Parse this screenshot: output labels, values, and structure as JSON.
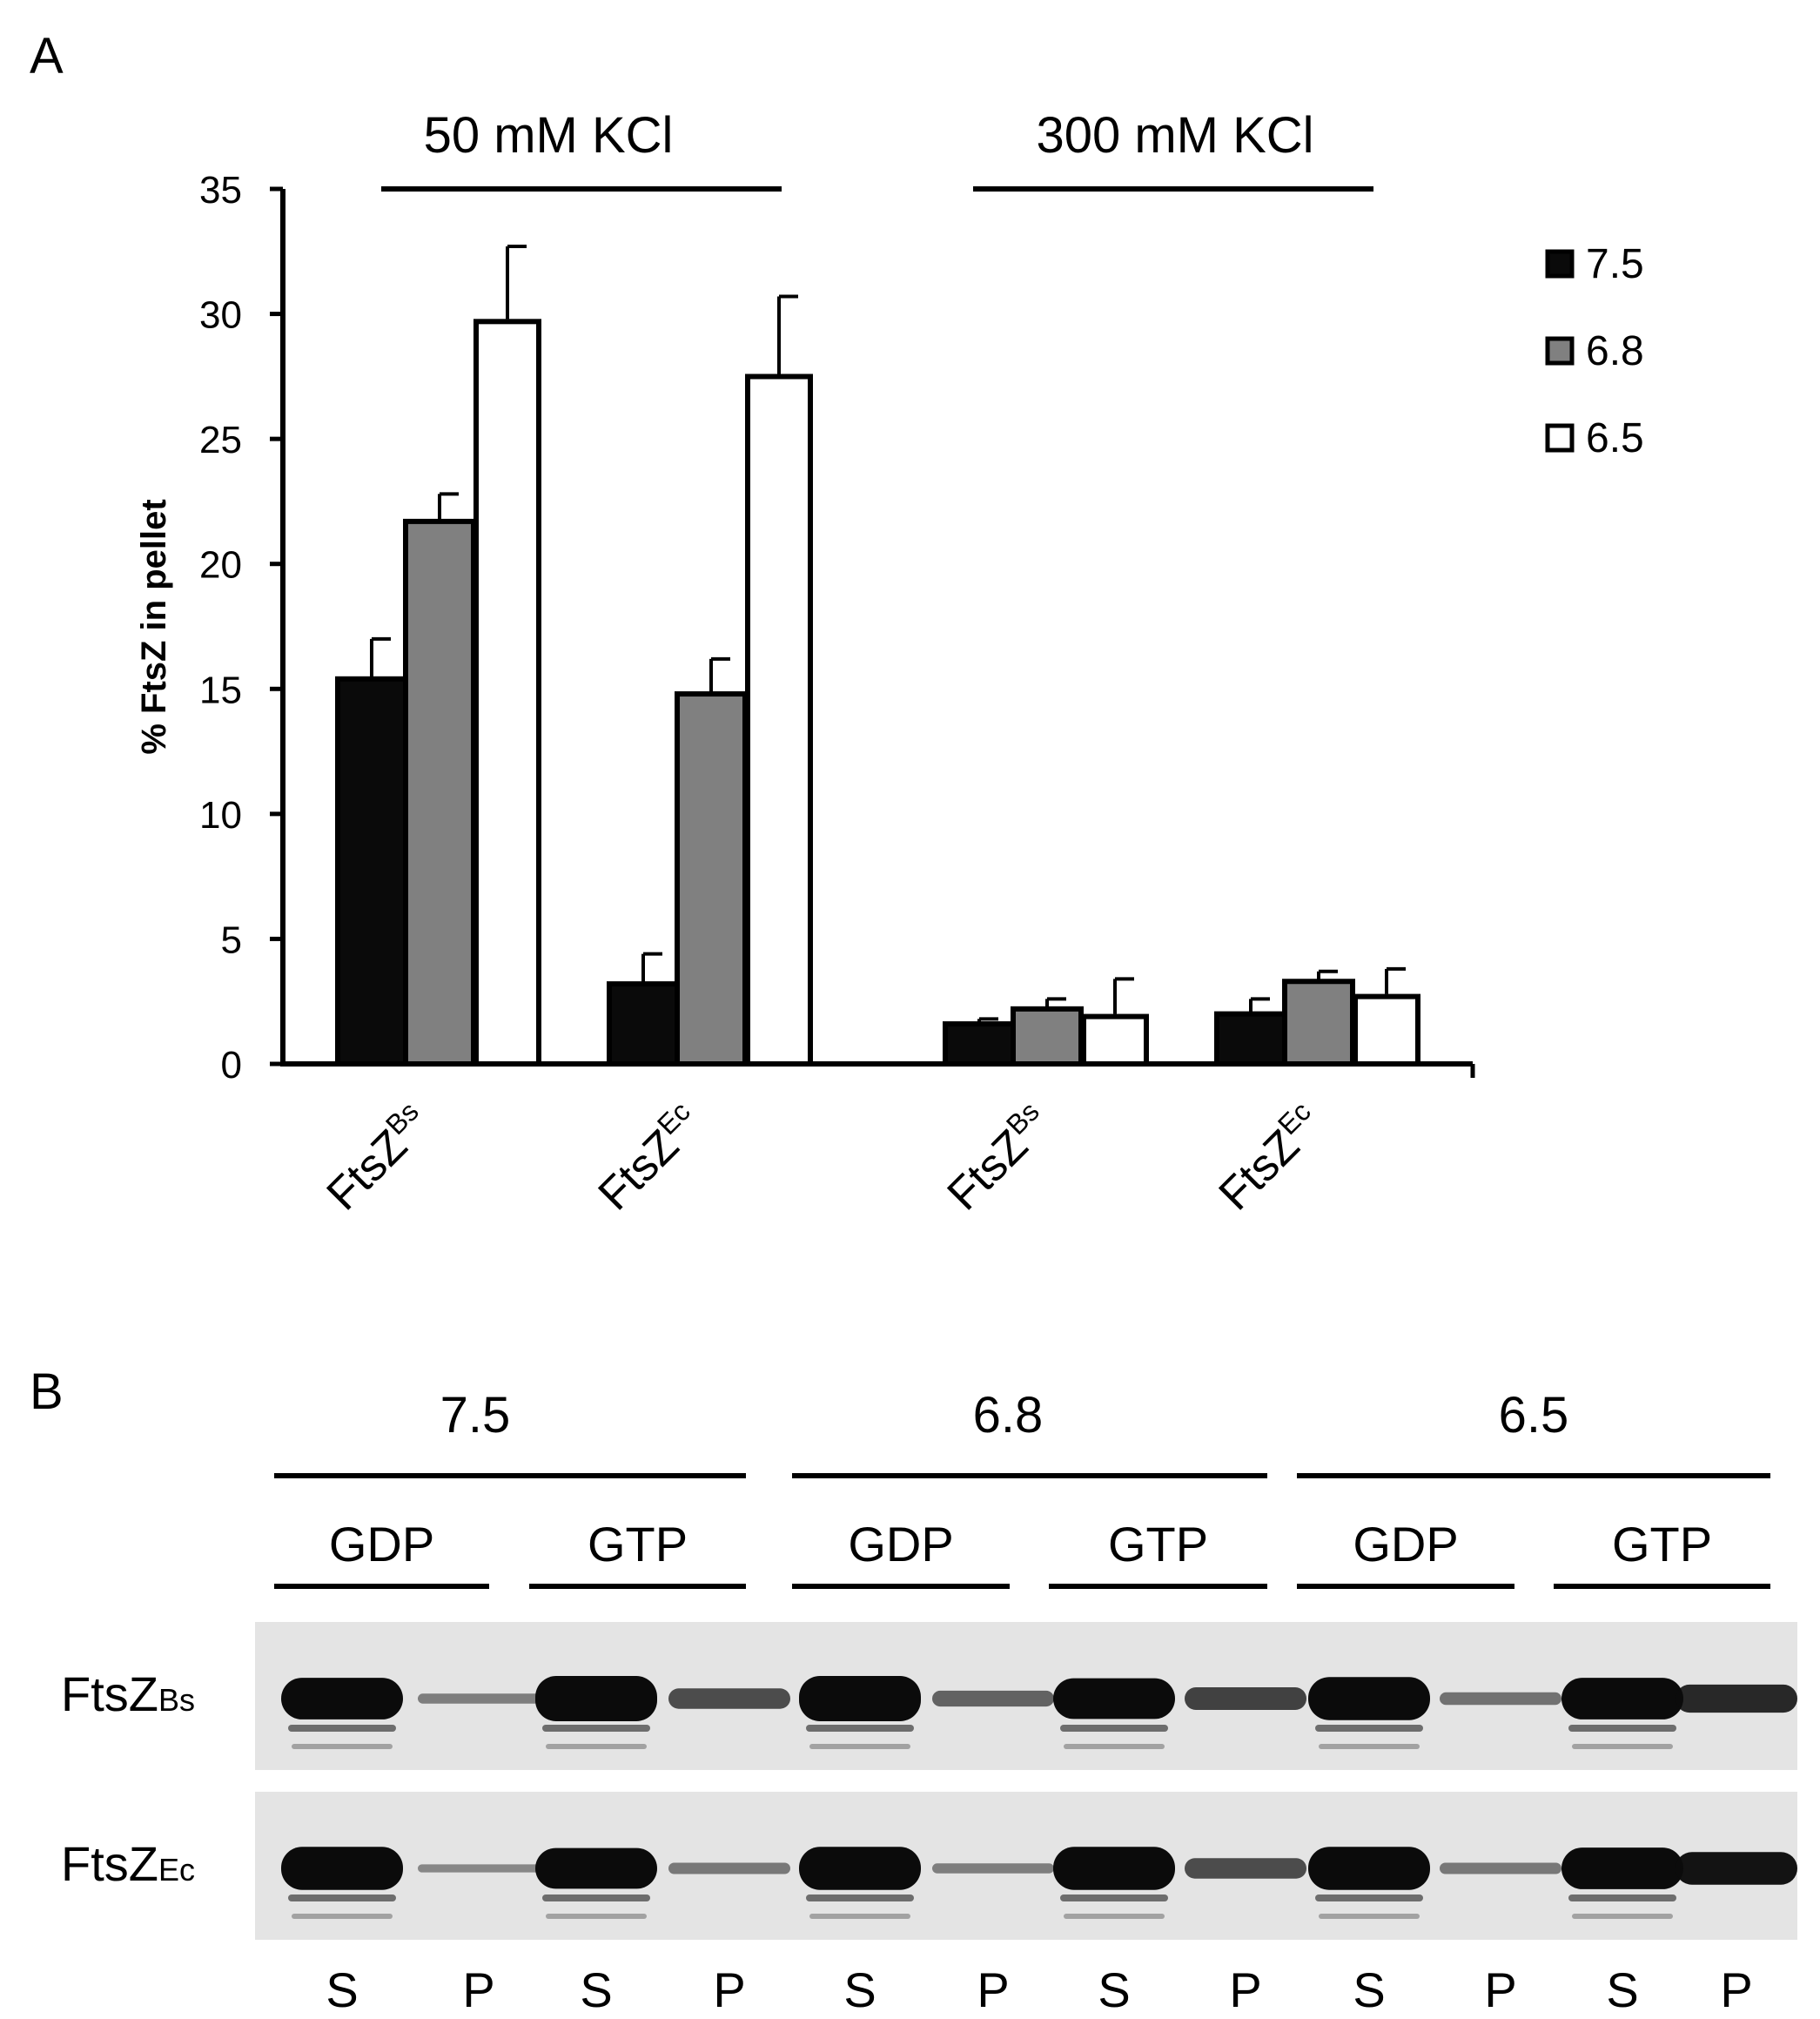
{
  "panel_a": {
    "label": "A",
    "groups": [
      {
        "label": "50 mM KCl"
      },
      {
        "label": "300 mM KCl"
      }
    ]
  },
  "panel_b": {
    "label": "B",
    "ph_headers": [
      "7.5",
      "6.8",
      "6.5"
    ],
    "nucleotides": [
      "GDP",
      "GTP",
      "GDP",
      "GTP",
      "GDP",
      "GTP"
    ],
    "row_labels": [
      {
        "main": "FtsZ",
        "sub": "Bs"
      },
      {
        "main": "FtsZ",
        "sub": "Ec"
      }
    ],
    "fractions": [
      "S",
      "P",
      "S",
      "P",
      "S",
      "P",
      "S",
      "P",
      "S",
      "P",
      "S",
      "P"
    ],
    "gel_background": "#e4e4e4",
    "band_color": "#0b0b0b",
    "gel_bands": [
      [
        0.92,
        0.22,
        1.0,
        0.45,
        1.0,
        0.35,
        0.9,
        0.5,
        0.95,
        0.28,
        0.92,
        0.62
      ],
      [
        0.95,
        0.18,
        0.9,
        0.25,
        0.95,
        0.22,
        0.95,
        0.45,
        0.95,
        0.25,
        0.92,
        0.72
      ]
    ]
  },
  "chart_data": {
    "type": "bar",
    "ylabel": "% FtsZ in pellet",
    "xlabel": "",
    "ylim": [
      0,
      35
    ],
    "yticks": [
      0,
      5,
      10,
      15,
      20,
      25,
      30,
      35
    ],
    "categories": [
      {
        "main": "FtsZ",
        "sub": "Bs"
      },
      {
        "main": "FtsZ",
        "sub": "Ec"
      },
      {
        "main": "FtsZ",
        "sub": "Bs"
      },
      {
        "main": "FtsZ",
        "sub": "Ec"
      }
    ],
    "series": [
      {
        "name": "7.5",
        "color": "#0a0a0a",
        "values": [
          15.4,
          3.2,
          1.6,
          2.0
        ],
        "errors": [
          1.6,
          1.2,
          0.2,
          0.6
        ]
      },
      {
        "name": "6.8",
        "color": "#808080",
        "values": [
          21.7,
          14.8,
          2.2,
          3.3
        ],
        "errors": [
          1.1,
          1.4,
          0.4,
          0.4
        ]
      },
      {
        "name": "6.5",
        "color": "#ffffff",
        "values": [
          29.8,
          27.6,
          2.0,
          2.8
        ],
        "errors": [
          2.9,
          3.1,
          1.4,
          1.0
        ]
      }
    ],
    "legend_position": "top-right",
    "grid": false
  }
}
